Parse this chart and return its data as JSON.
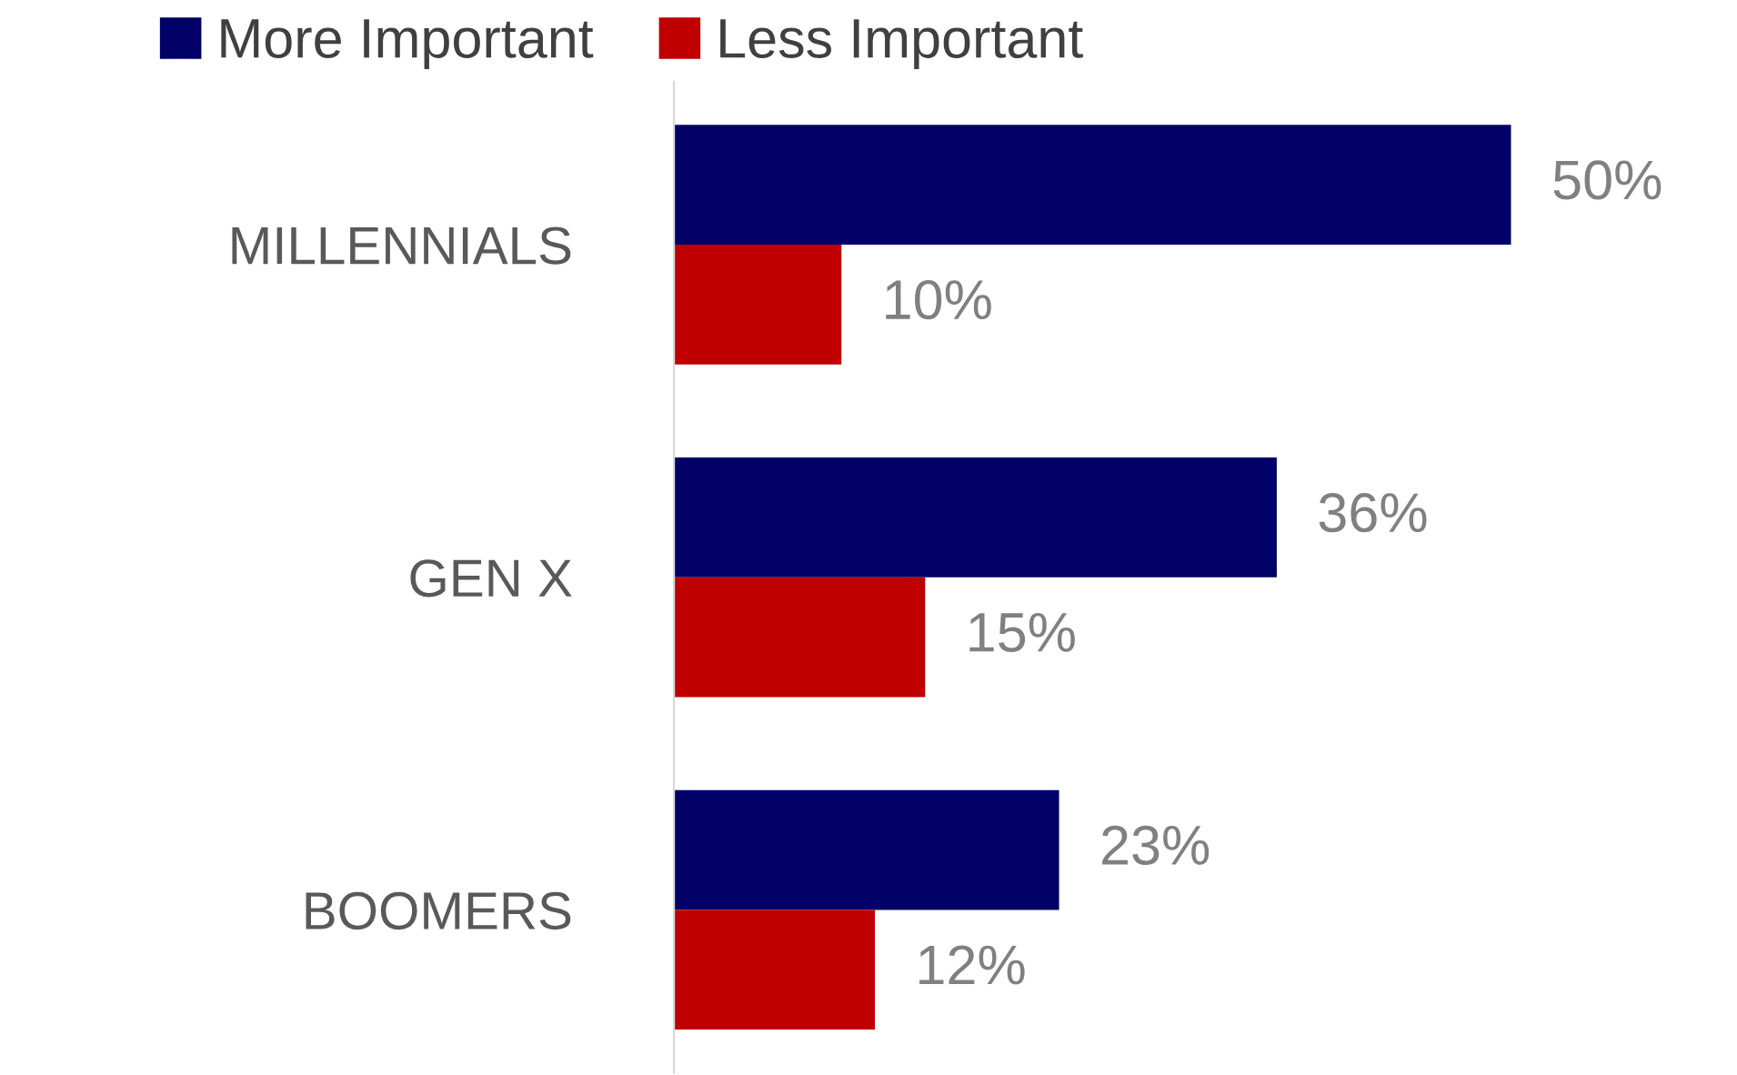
{
  "chart_data": {
    "type": "bar",
    "orientation": "horizontal",
    "categories": [
      "MILLENNIALS",
      "GEN X",
      "BOOMERS"
    ],
    "series": [
      {
        "name": "More Important",
        "color": "#000066",
        "values": [
          50,
          36,
          23
        ],
        "value_labels": [
          "50%",
          "36%",
          "23%"
        ]
      },
      {
        "name": "Less Important",
        "color": "#c00000",
        "values": [
          10,
          15,
          12
        ],
        "value_labels": [
          "10%",
          "15%",
          "12%"
        ]
      }
    ],
    "legend": "top",
    "grid": false,
    "tick_labels": "y"
  }
}
